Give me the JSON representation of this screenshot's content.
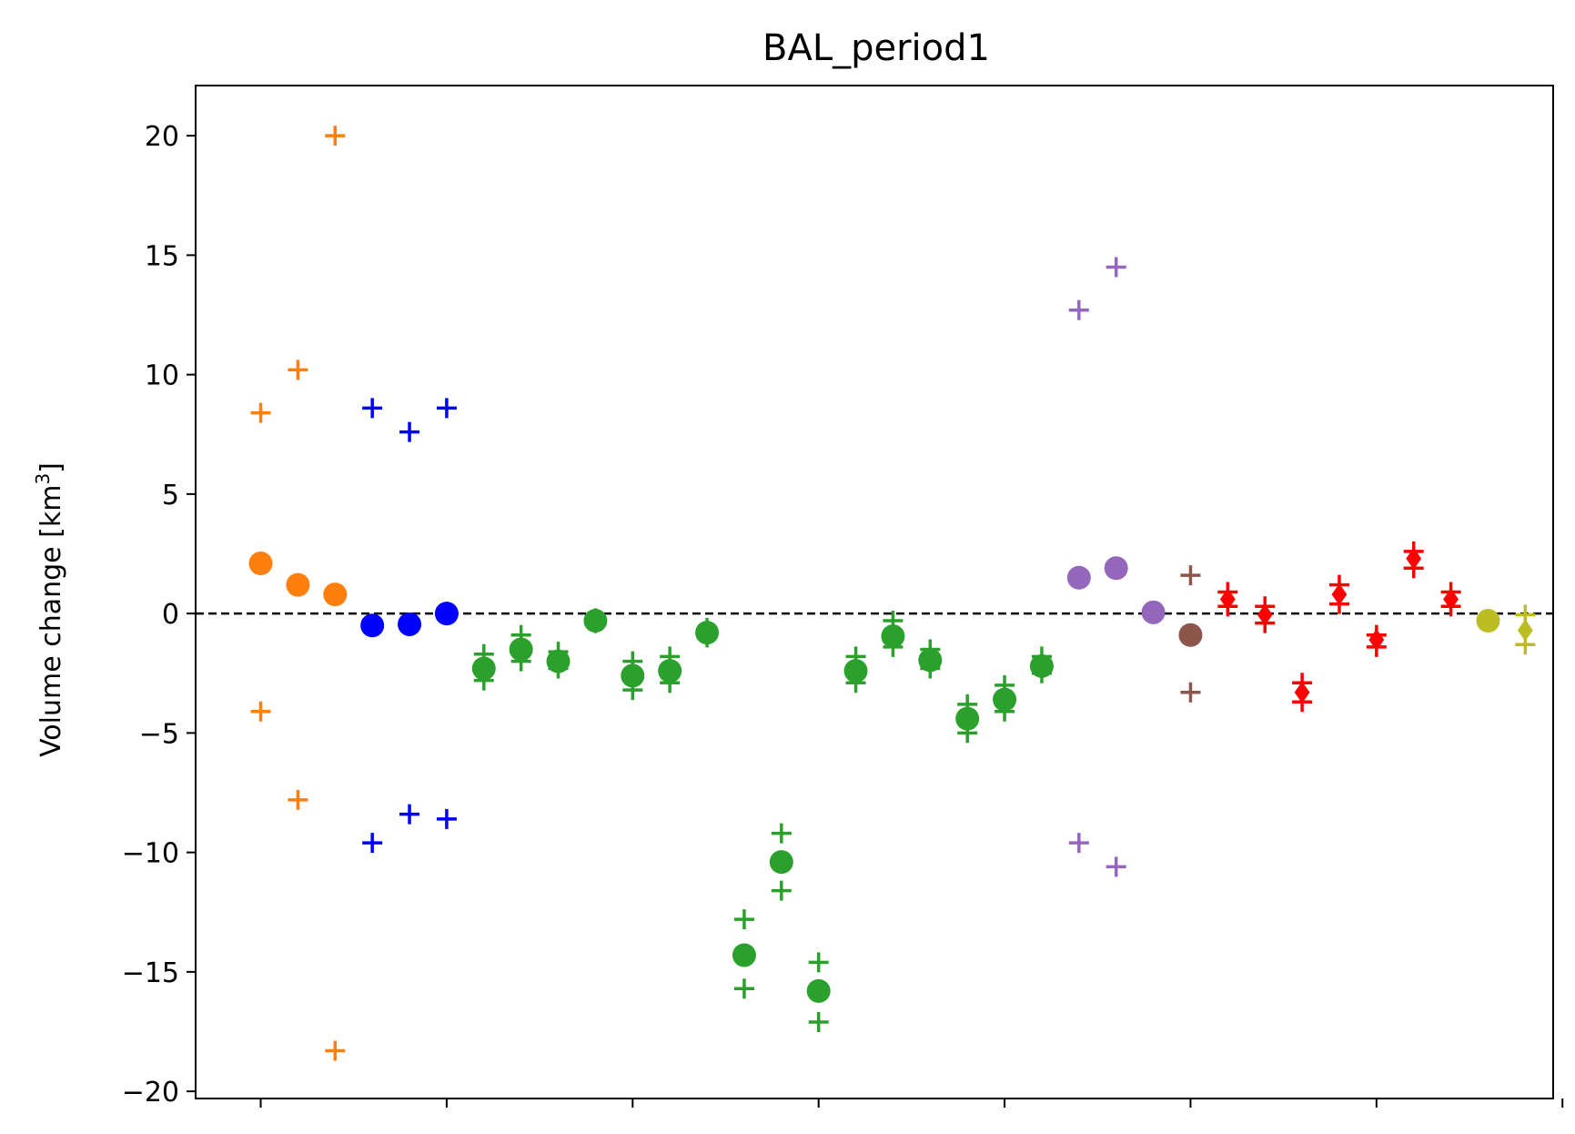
{
  "chart_data": {
    "type": "scatter",
    "title": "BAL_period1",
    "xlabel": "",
    "ylabel": "Volume change [km",
    "ylabel_sup": "3",
    "ylabel_suffix": "]",
    "xlim": [
      0.25,
      36.75
    ],
    "ylim": [
      -20.3,
      22.1
    ],
    "x_ticks": [
      2,
      7,
      12,
      17,
      22,
      27,
      32,
      37
    ],
    "y_ticks": [
      20,
      15,
      10,
      5,
      0,
      -5,
      -10,
      -15,
      -20
    ],
    "y_tick_labels": [
      "20",
      "15",
      "10",
      "5",
      "0",
      "−5",
      "−10",
      "−15",
      "−20"
    ],
    "reference_line": {
      "y": 0,
      "style": "dashed",
      "color": "#000000"
    },
    "series": [
      {
        "name": "orange",
        "color": "#ff7f0e",
        "marker": "circle",
        "points": [
          {
            "x": 2,
            "y": 2.1
          },
          {
            "x": 3,
            "y": 1.2
          },
          {
            "x": 4,
            "y": 0.8
          }
        ],
        "upper": [
          8.4,
          10.2,
          20.0
        ],
        "lower": [
          -4.1,
          -7.8,
          -18.3
        ]
      },
      {
        "name": "blue",
        "color": "#0000ff",
        "marker": "circle",
        "points": [
          {
            "x": 5,
            "y": -0.5
          },
          {
            "x": 6,
            "y": -0.45
          },
          {
            "x": 7,
            "y": 0.0
          }
        ],
        "upper": [
          8.6,
          7.6,
          8.6
        ],
        "lower": [
          -9.6,
          -8.4,
          -8.6
        ]
      },
      {
        "name": "green",
        "color": "#2ca02c",
        "marker": "circle",
        "points": [
          {
            "x": 8,
            "y": -2.3
          },
          {
            "x": 9,
            "y": -1.5
          },
          {
            "x": 10,
            "y": -2.0
          },
          {
            "x": 11,
            "y": -0.3
          },
          {
            "x": 12,
            "y": -2.6
          },
          {
            "x": 13,
            "y": -2.4
          },
          {
            "x": 14,
            "y": -0.8
          },
          {
            "x": 15,
            "y": -14.3
          },
          {
            "x": 16,
            "y": -10.4
          },
          {
            "x": 17,
            "y": -15.8
          },
          {
            "x": 18,
            "y": -2.4
          },
          {
            "x": 19,
            "y": -0.95
          },
          {
            "x": 20,
            "y": -1.95
          },
          {
            "x": 21,
            "y": -4.4
          },
          {
            "x": 22,
            "y": -3.6
          },
          {
            "x": 23,
            "y": -2.2
          }
        ],
        "upper": [
          -1.7,
          -0.9,
          -1.6,
          -0.2,
          -2.0,
          -1.8,
          -0.6,
          -12.8,
          -9.2,
          -14.6,
          -1.8,
          -0.3,
          -1.5,
          -3.8,
          -3.0,
          -1.8
        ],
        "lower": [
          -2.8,
          -2.0,
          -2.3,
          -0.4,
          -3.2,
          -2.9,
          -1.0,
          -15.7,
          -11.6,
          -17.1,
          -2.9,
          -1.4,
          -2.3,
          -5.0,
          -4.1,
          -2.5
        ]
      },
      {
        "name": "purple",
        "color": "#9467bd",
        "marker": "circle",
        "points": [
          {
            "x": 24,
            "y": 1.5
          },
          {
            "x": 25,
            "y": 1.9
          },
          {
            "x": 26,
            "y": 0.05
          }
        ],
        "upper": [
          12.7,
          14.5,
          null
        ],
        "lower": [
          -9.6,
          -10.6,
          null
        ]
      },
      {
        "name": "brown",
        "color": "#8c564b",
        "marker": "circle",
        "points": [
          {
            "x": 27,
            "y": -0.9
          }
        ],
        "upper": [
          1.6
        ],
        "lower": [
          -3.3
        ]
      },
      {
        "name": "red",
        "color": "#ff0000",
        "marker": "diamond",
        "points": [
          {
            "x": 28,
            "y": 0.6
          },
          {
            "x": 29,
            "y": -0.05
          },
          {
            "x": 30,
            "y": -3.3
          },
          {
            "x": 31,
            "y": 0.8
          },
          {
            "x": 32,
            "y": -1.1
          },
          {
            "x": 33,
            "y": 2.3
          },
          {
            "x": 34,
            "y": 0.6
          }
        ],
        "upper": [
          0.9,
          0.3,
          -2.9,
          1.2,
          -0.9,
          2.6,
          0.9
        ],
        "lower": [
          0.3,
          -0.4,
          -3.7,
          0.4,
          -1.4,
          1.9,
          0.3
        ]
      },
      {
        "name": "olive",
        "color": "#bcbd22",
        "marker": "circle",
        "points": [
          {
            "x": 35,
            "y": -0.3
          }
        ],
        "upper": [
          null
        ],
        "lower": [
          null
        ]
      },
      {
        "name": "olive-diamond",
        "color": "#bcbd22",
        "marker": "diamond",
        "points": [
          {
            "x": 36,
            "y": -0.7
          }
        ],
        "upper": [
          -0.05
        ],
        "lower": [
          -1.3
        ]
      }
    ]
  }
}
